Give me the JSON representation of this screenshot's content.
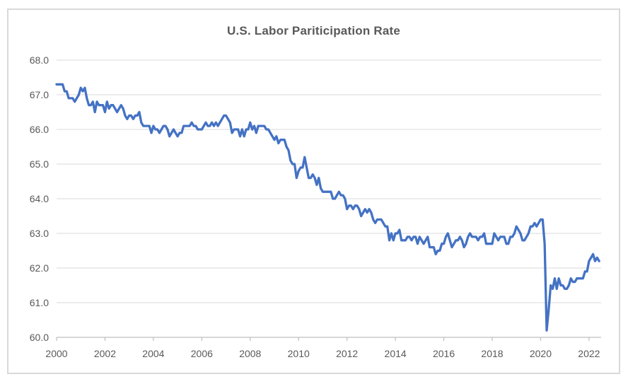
{
  "chart_data": {
    "type": "line",
    "title": "U.S. Labor Pariticipation Rate",
    "xlabel": "",
    "ylabel": "",
    "ylim": [
      60.0,
      68.0
    ],
    "y_tick_step": 1.0,
    "y_tick_labels": [
      "60.0",
      "61.0",
      "62.0",
      "63.0",
      "64.0",
      "65.0",
      "66.0",
      "67.0",
      "68.0"
    ],
    "x_range": [
      2000.0,
      2022.5
    ],
    "x_tick_labels": [
      "2000",
      "2002",
      "2004",
      "2006",
      "2008",
      "2010",
      "2012",
      "2014",
      "2016",
      "2018",
      "2020",
      "2022"
    ],
    "grid": "horizontal",
    "legend": "none",
    "colors": {
      "line": "#4472c4",
      "gridline": "#d9d9d9",
      "axis": "#bfbfbf",
      "labels": "#595959",
      "title": "#595959",
      "frame_border": "#d9d9d9",
      "background": "#ffffff"
    },
    "series": [
      {
        "name": "participation-rate",
        "frequency": "monthly",
        "start_year": 2000,
        "start_month": 1,
        "values": [
          67.3,
          67.3,
          67.3,
          67.3,
          67.1,
          67.1,
          66.9,
          66.9,
          66.9,
          66.8,
          66.9,
          67.0,
          67.2,
          67.1,
          67.2,
          66.9,
          66.7,
          66.7,
          66.8,
          66.5,
          66.8,
          66.7,
          66.7,
          66.7,
          66.5,
          66.8,
          66.6,
          66.7,
          66.7,
          66.6,
          66.5,
          66.6,
          66.7,
          66.6,
          66.4,
          66.3,
          66.4,
          66.4,
          66.3,
          66.4,
          66.4,
          66.5,
          66.2,
          66.1,
          66.1,
          66.1,
          66.1,
          65.9,
          66.1,
          66.0,
          66.0,
          65.9,
          66.0,
          66.1,
          66.1,
          66.0,
          65.8,
          65.9,
          66.0,
          65.9,
          65.8,
          65.9,
          65.9,
          66.1,
          66.1,
          66.1,
          66.1,
          66.2,
          66.1,
          66.1,
          66.0,
          66.0,
          66.0,
          66.1,
          66.2,
          66.1,
          66.1,
          66.2,
          66.1,
          66.2,
          66.1,
          66.2,
          66.3,
          66.4,
          66.4,
          66.3,
          66.2,
          65.9,
          66.0,
          66.0,
          66.0,
          65.8,
          66.0,
          65.8,
          66.0,
          66.0,
          66.2,
          66.0,
          66.1,
          65.9,
          66.1,
          66.1,
          66.1,
          66.1,
          66.0,
          66.0,
          65.9,
          65.8,
          65.7,
          65.8,
          65.6,
          65.7,
          65.7,
          65.7,
          65.5,
          65.4,
          65.1,
          65.0,
          65.0,
          64.6,
          64.8,
          64.9,
          64.9,
          65.2,
          64.9,
          64.6,
          64.6,
          64.7,
          64.6,
          64.4,
          64.6,
          64.3,
          64.2,
          64.2,
          64.2,
          64.2,
          64.2,
          64.0,
          64.0,
          64.1,
          64.2,
          64.1,
          64.1,
          64.0,
          63.7,
          63.8,
          63.8,
          63.7,
          63.8,
          63.8,
          63.7,
          63.5,
          63.6,
          63.7,
          63.6,
          63.7,
          63.6,
          63.4,
          63.3,
          63.4,
          63.4,
          63.4,
          63.3,
          63.2,
          63.2,
          62.8,
          63.0,
          62.8,
          63.0,
          63.0,
          63.1,
          62.8,
          62.8,
          62.8,
          62.9,
          62.9,
          62.8,
          62.9,
          62.9,
          62.7,
          62.9,
          62.8,
          62.7,
          62.8,
          62.9,
          62.6,
          62.6,
          62.6,
          62.4,
          62.5,
          62.5,
          62.7,
          62.7,
          62.9,
          63.0,
          62.8,
          62.6,
          62.7,
          62.8,
          62.8,
          62.9,
          62.8,
          62.6,
          62.7,
          62.9,
          63.0,
          62.9,
          62.9,
          62.9,
          62.8,
          62.9,
          62.9,
          63.0,
          62.7,
          62.7,
          62.7,
          62.7,
          63.0,
          62.9,
          62.8,
          62.9,
          62.9,
          62.9,
          62.7,
          62.7,
          62.9,
          62.9,
          63.0,
          63.2,
          63.1,
          63.0,
          62.8,
          62.8,
          62.9,
          63.0,
          63.2,
          63.2,
          63.3,
          63.2,
          63.3,
          63.4,
          63.4,
          62.7,
          60.2,
          60.8,
          61.5,
          61.4,
          61.7,
          61.4,
          61.7,
          61.5,
          61.5,
          61.4,
          61.4,
          61.5,
          61.7,
          61.6,
          61.6,
          61.7,
          61.7,
          61.7,
          61.7,
          61.9,
          61.9,
          62.2,
          62.3,
          62.4,
          62.2,
          62.3,
          62.2
        ]
      }
    ]
  }
}
